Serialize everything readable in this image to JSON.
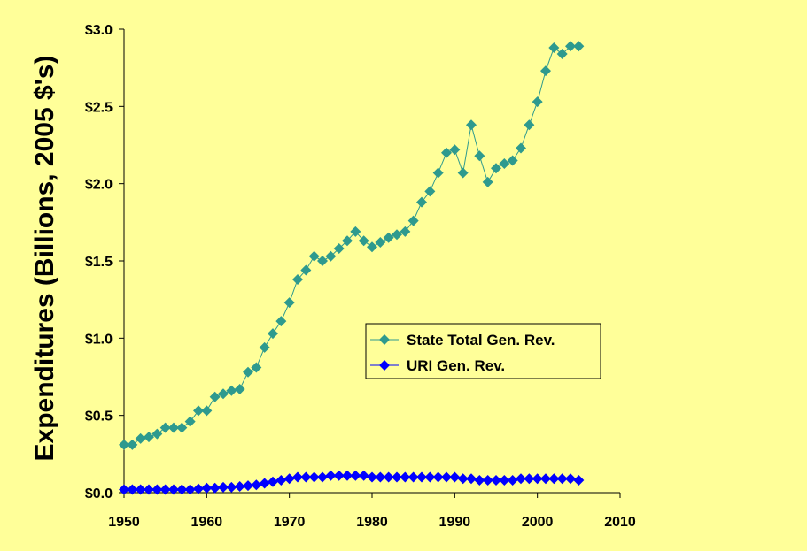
{
  "chart_data": {
    "type": "line",
    "ylabel": "Expenditures (Billions, 2005 $'s)",
    "xlabel": "",
    "title": "",
    "xlim": [
      1950,
      2010
    ],
    "ylim": [
      0,
      3.0
    ],
    "x_ticks": [
      1950,
      1960,
      1970,
      1980,
      1990,
      2000,
      2010
    ],
    "y_ticks": [
      "$0.0",
      "$0.5",
      "$1.0",
      "$1.5",
      "$2.0",
      "$2.5",
      "$3.0"
    ],
    "y_tick_values": [
      0,
      0.5,
      1.0,
      1.5,
      2.0,
      2.5,
      3.0
    ],
    "grid": false,
    "legend_position": "center-right",
    "x": [
      1950,
      1951,
      1952,
      1953,
      1954,
      1955,
      1956,
      1957,
      1958,
      1959,
      1960,
      1961,
      1962,
      1963,
      1964,
      1965,
      1966,
      1967,
      1968,
      1969,
      1970,
      1971,
      1972,
      1973,
      1974,
      1975,
      1976,
      1977,
      1978,
      1979,
      1980,
      1981,
      1982,
      1983,
      1984,
      1985,
      1986,
      1987,
      1988,
      1989,
      1990,
      1991,
      1992,
      1993,
      1994,
      1995,
      1996,
      1997,
      1998,
      1999,
      2000,
      2001,
      2002,
      2003,
      2004,
      2005
    ],
    "series": [
      {
        "name": "State Total Gen. Rev.",
        "color": "#2E9A8E",
        "marker": "diamond",
        "values": [
          0.31,
          0.31,
          0.35,
          0.36,
          0.38,
          0.42,
          0.42,
          0.42,
          0.46,
          0.53,
          0.53,
          0.62,
          0.64,
          0.66,
          0.67,
          0.78,
          0.81,
          0.94,
          1.03,
          1.11,
          1.23,
          1.38,
          1.44,
          1.53,
          1.5,
          1.53,
          1.58,
          1.63,
          1.69,
          1.63,
          1.59,
          1.62,
          1.65,
          1.67,
          1.69,
          1.76,
          1.88,
          1.95,
          2.07,
          2.2,
          2.22,
          2.07,
          2.38,
          2.18,
          2.01,
          2.1,
          2.13,
          2.15,
          2.23,
          2.38,
          2.53,
          2.73,
          2.88,
          2.84,
          2.89,
          2.89
        ]
      },
      {
        "name": "URI Gen. Rev.",
        "color": "#0000FF",
        "marker": "diamond",
        "values": [
          0.02,
          0.02,
          0.02,
          0.02,
          0.02,
          0.02,
          0.02,
          0.02,
          0.02,
          0.025,
          0.03,
          0.03,
          0.035,
          0.035,
          0.04,
          0.045,
          0.05,
          0.06,
          0.07,
          0.08,
          0.09,
          0.1,
          0.1,
          0.1,
          0.1,
          0.11,
          0.11,
          0.11,
          0.11,
          0.11,
          0.1,
          0.1,
          0.1,
          0.1,
          0.1,
          0.1,
          0.1,
          0.1,
          0.1,
          0.1,
          0.1,
          0.09,
          0.09,
          0.08,
          0.08,
          0.08,
          0.08,
          0.08,
          0.09,
          0.09,
          0.09,
          0.09,
          0.09,
          0.09,
          0.09,
          0.08
        ]
      }
    ]
  }
}
